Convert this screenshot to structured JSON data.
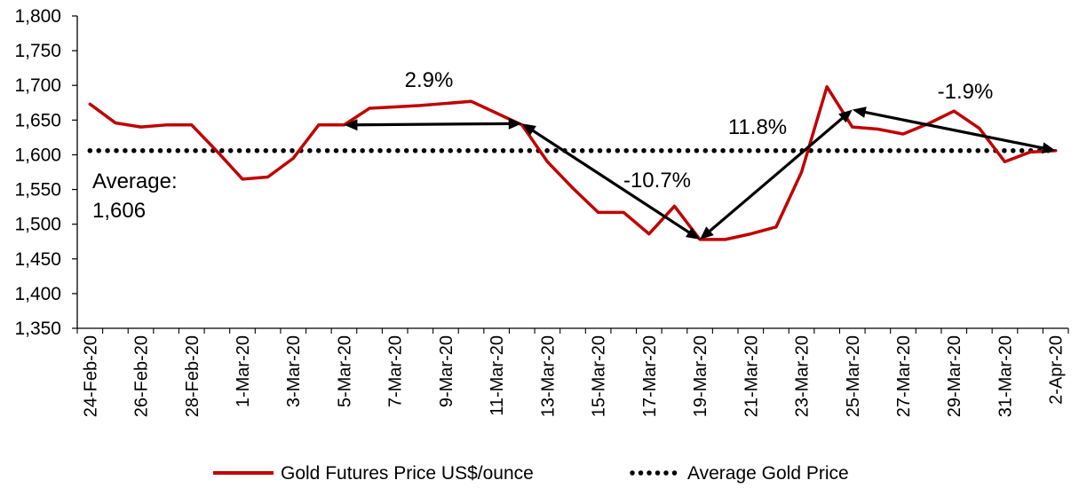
{
  "chart_data": {
    "type": "line",
    "title": "",
    "xlabel": "",
    "ylabel": "",
    "ylim": [
      1350,
      1800
    ],
    "yticks": [
      "1,350",
      "1,400",
      "1,450",
      "1,500",
      "1,550",
      "1,600",
      "1,650",
      "1,700",
      "1,750",
      "1,800"
    ],
    "ytick_values": [
      1350,
      1400,
      1450,
      1500,
      1550,
      1600,
      1650,
      1700,
      1750,
      1800
    ],
    "x": [
      "24-Feb-20",
      "25-Feb-20",
      "26-Feb-20",
      "27-Feb-20",
      "28-Feb-20",
      "29-Feb-20",
      "1-Mar-20",
      "2-Mar-20",
      "3-Mar-20",
      "4-Mar-20",
      "5-Mar-20",
      "6-Mar-20",
      "7-Mar-20",
      "8-Mar-20",
      "9-Mar-20",
      "10-Mar-20",
      "11-Mar-20",
      "12-Mar-20",
      "13-Mar-20",
      "14-Mar-20",
      "15-Mar-20",
      "16-Mar-20",
      "17-Mar-20",
      "18-Mar-20",
      "19-Mar-20",
      "20-Mar-20",
      "21-Mar-20",
      "22-Mar-20",
      "23-Mar-20",
      "24-Mar-20",
      "25-Mar-20",
      "26-Mar-20",
      "27-Mar-20",
      "28-Mar-20",
      "29-Mar-20",
      "30-Mar-20",
      "31-Mar-20",
      "1-Apr-20",
      "2-Apr-20"
    ],
    "x_tick_labels": [
      "24-Feb-20",
      "26-Feb-20",
      "28-Feb-20",
      "1-Mar-20",
      "3-Mar-20",
      "5-Mar-20",
      "7-Mar-20",
      "9-Mar-20",
      "11-Mar-20",
      "13-Mar-20",
      "15-Mar-20",
      "17-Mar-20",
      "19-Mar-20",
      "21-Mar-20",
      "23-Mar-20",
      "25-Mar-20",
      "27-Mar-20",
      "29-Mar-20",
      "31-Mar-20",
      "2-Apr-20"
    ],
    "series": [
      {
        "name": "Gold Futures Price US$/ounce",
        "color": "#c00000",
        "style": "solid",
        "values": [
          1673,
          1646,
          1640,
          1643,
          1643,
          1605,
          1565,
          1568,
          1595,
          1643,
          1643,
          1667,
          1669,
          1671,
          1674,
          1677,
          1660,
          1643,
          1590,
          1552,
          1517,
          1517,
          1486,
          1526,
          1478,
          1478,
          1486,
          1496,
          1575,
          1698,
          1640,
          1637,
          1630,
          1645,
          1663,
          1638,
          1590,
          1604,
          1606
        ]
      },
      {
        "name": "Average Gold Price",
        "color": "#000000",
        "style": "dotted",
        "values": [
          1606,
          1606,
          1606,
          1606,
          1606,
          1606,
          1606,
          1606,
          1606,
          1606,
          1606,
          1606,
          1606,
          1606,
          1606,
          1606,
          1606,
          1606,
          1606,
          1606,
          1606,
          1606,
          1606,
          1606,
          1606,
          1606,
          1606,
          1606,
          1606,
          1606,
          1606,
          1606,
          1606,
          1606,
          1606,
          1606,
          1606,
          1606,
          1606
        ]
      }
    ],
    "annotations": [
      {
        "text": "2.9%",
        "from": {
          "x": "5-Mar-20",
          "y": 1643
        },
        "to": {
          "x": "12-Mar-20",
          "y": 1645
        }
      },
      {
        "text": "-10.7%",
        "from": {
          "x": "12-Mar-20",
          "y": 1645
        },
        "to": {
          "x": "19-Mar-20",
          "y": 1478
        }
      },
      {
        "text": "11.8%",
        "from": {
          "x": "19-Mar-20",
          "y": 1478
        },
        "to": {
          "x": "25-Mar-20",
          "y": 1665
        }
      },
      {
        "text": "-1.9%",
        "from": {
          "x": "25-Mar-20",
          "y": 1665
        },
        "to": {
          "x": "2-Apr-20",
          "y": 1606
        }
      }
    ],
    "average_label": {
      "line1": "Average:",
      "line2": "1,606"
    },
    "legend_position": "bottom-center"
  }
}
